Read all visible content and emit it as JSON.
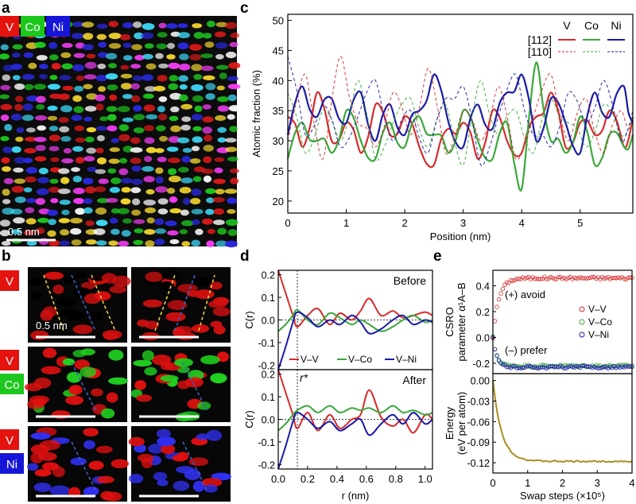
{
  "figure": {
    "panel_a": {
      "label": "a",
      "chips": [
        {
          "text": "V",
          "color": "#e4130f"
        },
        {
          "text": "Co",
          "color": "#1dc81d"
        },
        {
          "text": "Ni",
          "color": "#1616d8"
        }
      ],
      "scale_bar": "0.5 nm"
    },
    "panel_b": {
      "label": "b",
      "scale_bar": "0.5 nm",
      "rows": [
        {
          "chips": [
            {
              "text": "V",
              "color": "#e4130f"
            }
          ],
          "tint": [
            "#000000",
            "#e01010"
          ]
        },
        {
          "chips": [
            {
              "text": "V",
              "color": "#e4130f"
            },
            {
              "text": "Co",
              "color": "#1dc81d"
            }
          ],
          "tint": [
            "#e01010",
            "#20d020"
          ]
        },
        {
          "chips": [
            {
              "text": "V",
              "color": "#e4130f"
            },
            {
              "text": "Ni",
              "color": "#1616d8"
            }
          ],
          "tint": [
            "#e01010",
            "#3030f0"
          ]
        }
      ]
    },
    "panel_c": {
      "label": "c"
    },
    "panel_d": {
      "label": "d"
    },
    "panel_e": {
      "label": "e"
    }
  },
  "chart_data": [
    {
      "id": "c",
      "type": "line",
      "xlabel": "Position (nm)",
      "ylabel": "Atomic fraction (%)",
      "xlim": [
        0,
        5.9
      ],
      "ylim": [
        18,
        51
      ],
      "xticks": [
        0,
        1,
        2,
        3,
        4,
        5
      ],
      "yticks": [
        20,
        25,
        30,
        35,
        40,
        45,
        50
      ],
      "legend": {
        "placement": "top-right",
        "columns": [
          "V",
          "Co",
          "Ni"
        ],
        "rows": [
          "[112]",
          "[110]"
        ]
      },
      "colors": {
        "V": "#d62c2c",
        "Co": "#3aa83a",
        "Ni": "#1a1aa8"
      },
      "series": [
        {
          "name": "V",
          "direction": "[112]",
          "style": "solid",
          "mean": 33,
          "amp": 6,
          "x": [
            0,
            0.25,
            0.5,
            0.75,
            1.0,
            1.25,
            1.5,
            1.75,
            2.0,
            2.25,
            2.5,
            2.75,
            3.0,
            3.25,
            3.5,
            3.75,
            4.0,
            4.25,
            4.5,
            4.75,
            5.0,
            5.25,
            5.5,
            5.75,
            5.9
          ],
          "y": [
            34,
            29,
            38,
            30,
            33,
            28,
            36,
            31,
            34,
            29,
            26,
            32,
            33,
            27,
            35,
            30,
            28,
            34,
            38,
            29,
            33,
            31,
            35,
            29,
            34
          ]
        },
        {
          "name": "Co",
          "direction": "[112]",
          "style": "solid",
          "mean": 31,
          "amp": 7,
          "x": [
            0,
            0.25,
            0.5,
            0.75,
            1.0,
            1.25,
            1.5,
            1.75,
            2.0,
            2.25,
            2.5,
            2.75,
            3.0,
            3.25,
            3.5,
            3.75,
            4.0,
            4.25,
            4.5,
            4.75,
            5.0,
            5.25,
            5.5,
            5.75,
            5.9
          ],
          "y": [
            27,
            33,
            30,
            28,
            35,
            30,
            27,
            33,
            29,
            34,
            31,
            28,
            35,
            30,
            27,
            33,
            22,
            43,
            30,
            28,
            34,
            26,
            31,
            29,
            31
          ]
        },
        {
          "name": "Ni",
          "direction": "[112]",
          "style": "solid",
          "mean": 35,
          "amp": 7,
          "x": [
            0,
            0.25,
            0.5,
            0.75,
            1.0,
            1.25,
            1.5,
            1.75,
            2.0,
            2.25,
            2.5,
            2.75,
            3.0,
            3.25,
            3.5,
            3.75,
            4.0,
            4.25,
            4.5,
            4.75,
            5.0,
            5.25,
            5.5,
            5.75,
            5.9
          ],
          "y": [
            31,
            39,
            34,
            37,
            33,
            38,
            30,
            36,
            31,
            35,
            41,
            33,
            29,
            36,
            32,
            38,
            41,
            30,
            37,
            33,
            28,
            38,
            34,
            39,
            33
          ]
        },
        {
          "name": "V",
          "direction": "[110]",
          "style": "dashed",
          "mean": 33,
          "amp": 7,
          "x": [
            0,
            0.3,
            0.6,
            0.9,
            1.2,
            1.5,
            1.8,
            2.1,
            2.4,
            2.7,
            3.0,
            3.3,
            3.6,
            3.9,
            4.2,
            4.5,
            4.8,
            5.1,
            5.4,
            5.7,
            5.9
          ],
          "y": [
            30,
            41,
            27,
            44,
            33,
            29,
            38,
            31,
            42,
            28,
            35,
            30,
            39,
            27,
            34,
            41,
            30,
            37,
            28,
            35,
            32
          ]
        },
        {
          "name": "Co",
          "direction": "[110]",
          "style": "dashed",
          "mean": 33,
          "amp": 7,
          "x": [
            0,
            0.3,
            0.6,
            0.9,
            1.2,
            1.5,
            1.8,
            2.1,
            2.4,
            2.7,
            3.0,
            3.3,
            3.6,
            3.9,
            4.2,
            4.5,
            4.8,
            5.1,
            5.4,
            5.7,
            5.9
          ],
          "y": [
            38,
            28,
            35,
            30,
            40,
            27,
            33,
            37,
            29,
            36,
            26,
            40,
            31,
            35,
            28,
            37,
            33,
            29,
            36,
            31,
            34
          ]
        },
        {
          "name": "Ni",
          "direction": "[110]",
          "style": "dashed",
          "mean": 34,
          "amp": 7,
          "x": [
            0,
            0.3,
            0.6,
            0.9,
            1.2,
            1.5,
            1.8,
            2.1,
            2.4,
            2.7,
            3.0,
            3.3,
            3.6,
            3.9,
            4.2,
            4.5,
            4.8,
            5.1,
            5.4,
            5.7,
            5.9
          ],
          "y": [
            44,
            31,
            36,
            29,
            34,
            40,
            30,
            35,
            28,
            37,
            39,
            26,
            34,
            41,
            31,
            29,
            38,
            33,
            40,
            30,
            35
          ]
        }
      ]
    },
    {
      "id": "d",
      "type": "line",
      "xlabel": "r (nm)",
      "ylabel": "C(r)",
      "xlim": [
        0,
        1.05
      ],
      "ylim": [
        -0.22,
        0.22
      ],
      "xticks": [
        0.0,
        0.2,
        0.4,
        0.6,
        0.8,
        1.0
      ],
      "yticks": [
        -0.2,
        -0.1,
        0.0,
        0.1,
        0.2
      ],
      "legend": {
        "placement": "bottom of upper subpanel"
      },
      "annotations": {
        "r_star_label": "r*",
        "r_star_value": 0.13
      },
      "subplots": [
        {
          "title": "Before",
          "series": [
            {
              "name": "V–V",
              "color": "#d62c2c",
              "x": [
                0.0,
                0.05,
                0.1,
                0.13,
                0.2,
                0.27,
                0.35,
                0.42,
                0.5,
                0.56,
                0.62,
                0.7,
                0.78,
                0.85,
                0.92,
                1.0,
                1.05
              ],
              "y": [
                0.22,
                0.12,
                0.02,
                -0.03,
                0.02,
                0.05,
                -0.02,
                0.03,
                0.0,
                0.04,
                0.095,
                0.02,
                0.04,
                0.01,
                0.02,
                0.035,
                0.02
              ]
            },
            {
              "name": "V–Co",
              "color": "#3aa83a",
              "x": [
                0.0,
                0.05,
                0.1,
                0.13,
                0.2,
                0.27,
                0.35,
                0.42,
                0.5,
                0.56,
                0.62,
                0.7,
                0.78,
                0.85,
                0.92,
                1.0,
                1.05
              ],
              "y": [
                -0.05,
                -0.02,
                0.02,
                0.045,
                0.0,
                -0.02,
                0.03,
                0.01,
                -0.02,
                0.0,
                -0.02,
                -0.05,
                -0.03,
                0.0,
                0.02,
                -0.01,
                0.0
              ]
            },
            {
              "name": "V–Ni",
              "color": "#1a1aa8",
              "x": [
                0.0,
                0.05,
                0.1,
                0.13,
                0.2,
                0.27,
                0.35,
                0.42,
                0.5,
                0.56,
                0.62,
                0.7,
                0.78,
                0.85,
                0.92,
                1.0,
                1.05
              ],
              "y": [
                -0.22,
                -0.12,
                -0.01,
                0.035,
                0.01,
                -0.03,
                0.0,
                -0.02,
                0.02,
                -0.01,
                -0.06,
                -0.04,
                0.0,
                0.02,
                -0.02,
                0.0,
                -0.01
              ]
            }
          ]
        },
        {
          "title": "After",
          "series": [
            {
              "name": "V–V",
              "color": "#d62c2c",
              "x": [
                0.0,
                0.05,
                0.1,
                0.13,
                0.2,
                0.27,
                0.35,
                0.42,
                0.5,
                0.56,
                0.62,
                0.7,
                0.78,
                0.85,
                0.92,
                1.0,
                1.05
              ],
              "y": [
                0.22,
                0.12,
                0.02,
                -0.04,
                0.03,
                -0.05,
                0.02,
                -0.04,
                0.0,
                0.02,
                0.13,
                0.01,
                -0.03,
                0.0,
                -0.06,
                0.02,
                0.0
              ]
            },
            {
              "name": "V–Co",
              "color": "#3aa83a",
              "x": [
                0.0,
                0.05,
                0.1,
                0.13,
                0.2,
                0.27,
                0.35,
                0.42,
                0.5,
                0.56,
                0.62,
                0.7,
                0.78,
                0.85,
                0.92,
                1.0,
                1.05
              ],
              "y": [
                -0.05,
                -0.02,
                0.02,
                0.04,
                0.06,
                0.03,
                0.06,
                0.03,
                0.05,
                0.04,
                0.05,
                0.03,
                0.06,
                0.03,
                0.04,
                0.02,
                0.03
              ]
            },
            {
              "name": "V–Ni",
              "color": "#1a1aa8",
              "x": [
                0.0,
                0.05,
                0.1,
                0.13,
                0.2,
                0.27,
                0.35,
                0.42,
                0.5,
                0.56,
                0.62,
                0.7,
                0.78,
                0.85,
                0.92,
                1.0,
                1.05
              ],
              "y": [
                -0.22,
                -0.12,
                -0.01,
                0.03,
                0.0,
                -0.04,
                -0.01,
                -0.05,
                -0.02,
                0.0,
                -0.07,
                -0.02,
                0.02,
                -0.02,
                0.03,
                -0.02,
                0.0
              ]
            }
          ]
        }
      ]
    },
    {
      "id": "e",
      "type": "scatter",
      "xlabel": "Swap steps (×10⁵)",
      "xlim": [
        0,
        4
      ],
      "xticks": [
        0,
        1,
        2,
        3,
        4
      ],
      "subplots": [
        {
          "ylabel_line1": "CSRO",
          "ylabel_line2": "parameter α¹A–B",
          "ylim": [
            -0.28,
            0.52
          ],
          "yticks": [
            -0.2,
            0.0,
            0.2,
            0.4
          ],
          "annotations": [
            "(+) avoid",
            "(–) prefer"
          ],
          "legend": {
            "placement": "right"
          },
          "series": [
            {
              "name": "V–V",
              "color": "#d62c2c",
              "start": 0.0,
              "end": 0.46,
              "rate": 6
            },
            {
              "name": "V–Co",
              "color": "#3aa83a",
              "start": 0.0,
              "end": -0.22,
              "rate": 9
            },
            {
              "name": "V–Ni",
              "color": "#1a1aa8",
              "start": 0.0,
              "end": -0.23,
              "rate": 9
            }
          ]
        },
        {
          "ylabel_line1": "Energy",
          "ylabel_line2": "(eV per atom)",
          "ylim": [
            -0.135,
            0.01
          ],
          "yticks": [
            0.0,
            -0.03,
            -0.06,
            -0.09,
            -0.12
          ],
          "series": [
            {
              "name": "Energy",
              "color": "#a89020",
              "start": 0.0,
              "end": -0.118,
              "rate": 4
            }
          ]
        }
      ]
    }
  ]
}
